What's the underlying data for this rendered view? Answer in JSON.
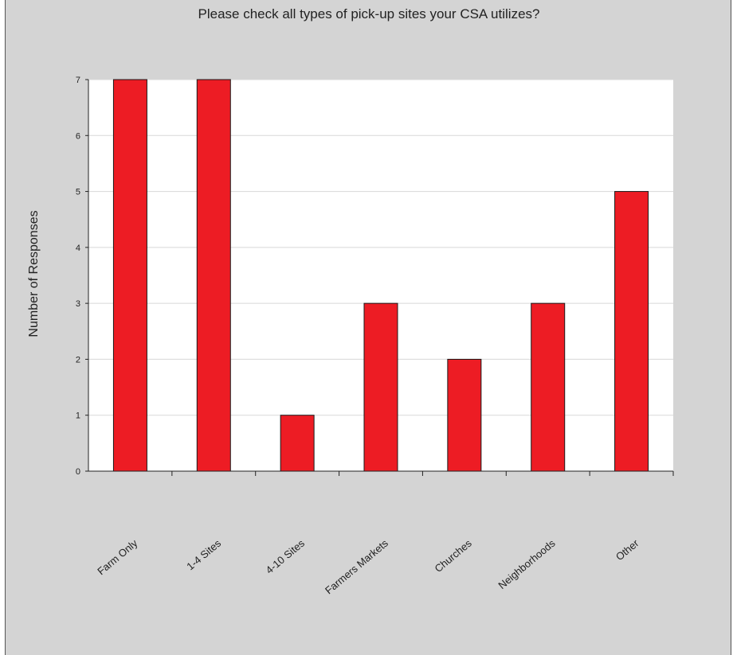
{
  "chart_data": {
    "type": "bar",
    "title": "Please check all types of pick-up sites your CSA utilizes?",
    "xlabel": "",
    "ylabel": "Number of Responses",
    "categories": [
      "Farm Only",
      "1-4 Sites",
      "4-10 Sites",
      "Farmers Markets",
      "Churches",
      "Neighborhoods",
      "Other"
    ],
    "values": [
      7,
      7,
      1,
      3,
      2,
      3,
      5
    ],
    "ylim": [
      0,
      7
    ],
    "yticks": [
      "0",
      "1",
      "2",
      "3",
      "4",
      "5",
      "6",
      "7"
    ],
    "grid": true,
    "legend": "none",
    "colors": {
      "bar": "#ed1c24",
      "bar_edge": "#1a1a1a",
      "plot_bg": "#ffffff",
      "frame_bg": "#d4d4d4",
      "grid": "#d8d8d8"
    }
  }
}
